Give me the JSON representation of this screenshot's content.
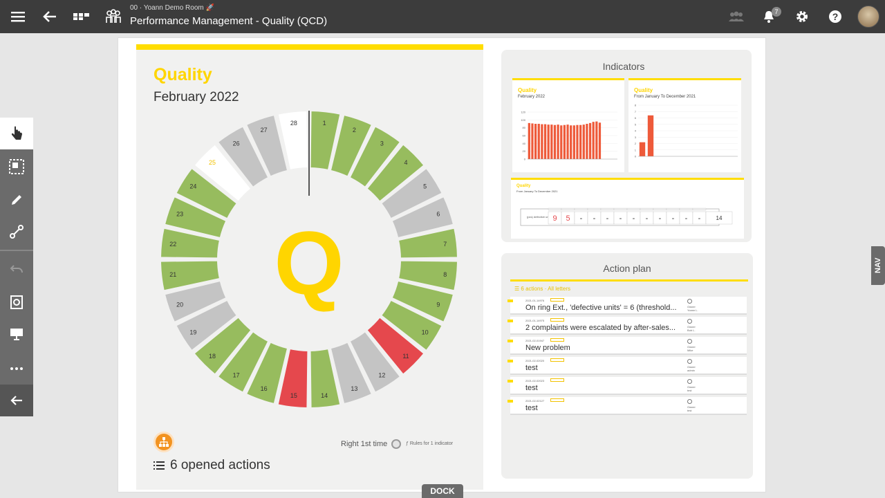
{
  "header": {
    "room": "00 · Yoann Demo Room 🚀",
    "title": "Performance Management - Quality (QCD)",
    "notification_count": "7"
  },
  "quality_panel": {
    "title": "Quality",
    "month": "February 2022",
    "letter": "Q",
    "right_first_time": "Right 1st time",
    "rules": "Rules for 1 indicator",
    "opened_actions": "6 opened actions",
    "days": [
      {
        "day": 1,
        "status": "green"
      },
      {
        "day": 2,
        "status": "green"
      },
      {
        "day": 3,
        "status": "green"
      },
      {
        "day": 4,
        "status": "green"
      },
      {
        "day": 5,
        "status": "gray"
      },
      {
        "day": 6,
        "status": "gray"
      },
      {
        "day": 7,
        "status": "green"
      },
      {
        "day": 8,
        "status": "green"
      },
      {
        "day": 9,
        "status": "green"
      },
      {
        "day": 10,
        "status": "green"
      },
      {
        "day": 11,
        "status": "red"
      },
      {
        "day": 12,
        "status": "gray"
      },
      {
        "day": 13,
        "status": "gray"
      },
      {
        "day": 14,
        "status": "green"
      },
      {
        "day": 15,
        "status": "red"
      },
      {
        "day": 16,
        "status": "green"
      },
      {
        "day": 17,
        "status": "green"
      },
      {
        "day": 18,
        "status": "green"
      },
      {
        "day": 19,
        "status": "gray"
      },
      {
        "day": 20,
        "status": "gray"
      },
      {
        "day": 21,
        "status": "green"
      },
      {
        "day": 22,
        "status": "green"
      },
      {
        "day": 23,
        "status": "green"
      },
      {
        "day": 24,
        "status": "green"
      },
      {
        "day": 25,
        "status": "today"
      },
      {
        "day": 26,
        "status": "gray"
      },
      {
        "day": 27,
        "status": "gray"
      },
      {
        "day": 28,
        "status": "white"
      }
    ],
    "colors": {
      "green": "#97bc5e",
      "gray": "#c4c4c4",
      "red": "#e5484d",
      "white": "#ffffff",
      "today_text": "#f2c200",
      "accent": "#ffdd00"
    }
  },
  "indicators": {
    "title": "Indicators",
    "chart1": {
      "title": "Quality",
      "subtitle": "February 2022"
    },
    "chart2": {
      "title": "Quality",
      "subtitle": "From January To December 2021"
    },
    "table": {
      "title": "Quality",
      "subtitle": "From January To December 2021",
      "row_label": "(pcs) defective units (Rtgt.)",
      "total": "14"
    }
  },
  "chart_data": [
    {
      "type": "bar",
      "title": "Quality",
      "subtitle": "February 2022",
      "categories": [
        "1",
        "2",
        "3",
        "4",
        "5",
        "6",
        "7",
        "8",
        "9",
        "10",
        "11",
        "12",
        "13",
        "14",
        "15",
        "16",
        "17",
        "18",
        "19",
        "20",
        "21",
        "22",
        "23",
        "24",
        "25",
        "26",
        "27",
        "28"
      ],
      "values": [
        92,
        91,
        90,
        90,
        89,
        89,
        88,
        88,
        87,
        88,
        86,
        87,
        88,
        86,
        86,
        87,
        87,
        88,
        90,
        92,
        95,
        96,
        93,
        0,
        0,
        0,
        0,
        0
      ],
      "ylim": [
        0,
        120
      ],
      "yticks": [
        "120",
        "100",
        "80",
        "60",
        "40",
        "20",
        "0"
      ]
    },
    {
      "type": "bar",
      "title": "Quality",
      "subtitle": "From January To December 2021",
      "categories": [
        "Jan",
        "Feb",
        "Mar",
        "Apr",
        "May",
        "Jun",
        "Jul",
        "Aug",
        "Sep",
        "Oct",
        "Nov",
        "Dec"
      ],
      "values": [
        2.2,
        6.4,
        0,
        0,
        0,
        0,
        0,
        0,
        0,
        0,
        0,
        0
      ],
      "ylim": [
        0,
        8
      ],
      "yticks": [
        "8",
        "7",
        "6",
        "5",
        "4",
        "3",
        "2",
        "1",
        "0"
      ]
    },
    {
      "type": "table",
      "title": "Quality",
      "subtitle": "From January To December 2021",
      "cells": [
        "9",
        "5",
        "-",
        "-",
        "-",
        "-",
        "-",
        "-",
        "-",
        "-",
        "-",
        "-"
      ],
      "total": "14"
    }
  ],
  "action_plan": {
    "title": "Action plan",
    "header": "6 actions · All letters",
    "actions": [
      {
        "meta": "2021-01-14976",
        "text": "On ring Ext., 'defective units' = 6 (threshold...",
        "owner": "Owner",
        "owner_name": "Yoann L."
      },
      {
        "meta": "2021-01-14975",
        "text": "2 complaints were escalated by after-sales...",
        "owner": "Owner",
        "owner_name": "Bob L."
      },
      {
        "meta": "2021-02-01947",
        "text": "New problem",
        "owner": "Owner",
        "owner_name": "Mike"
      },
      {
        "meta": "2021-02-02020",
        "text": "test",
        "owner": "Owner",
        "owner_name": "admin"
      },
      {
        "meta": "2021-02-02023",
        "text": "test",
        "owner": "Owner",
        "owner_name": "test"
      },
      {
        "meta": "2021-02-02127",
        "text": "test",
        "owner": "Owner",
        "owner_name": "test"
      }
    ]
  },
  "nav_label": "NAV",
  "dock_label": "DOCK"
}
